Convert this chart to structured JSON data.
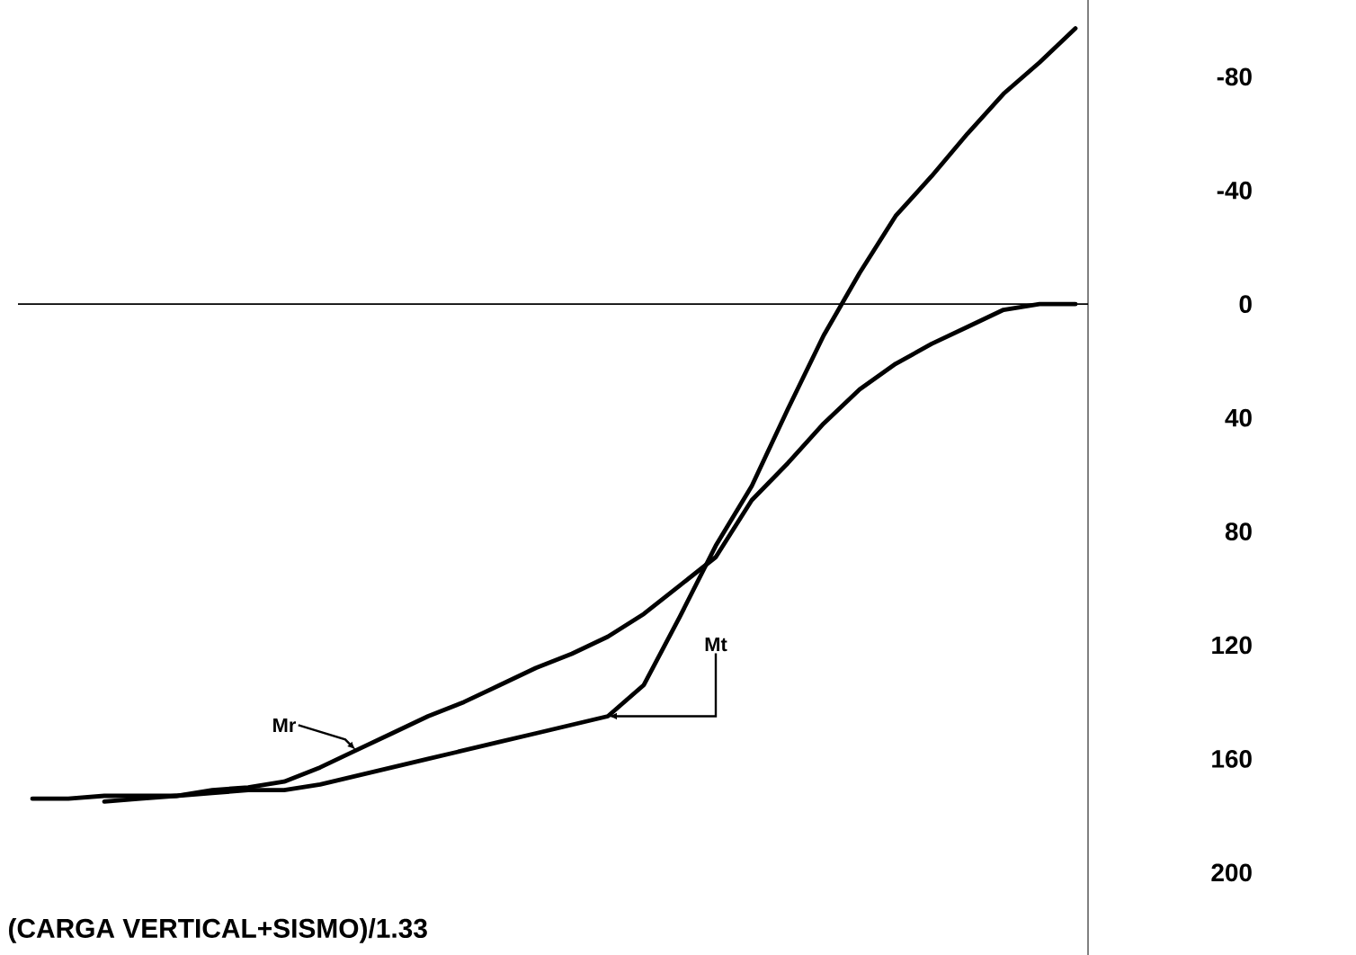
{
  "chart_data": {
    "type": "line",
    "categories": [
      null,
      null,
      null,
      null,
      null,
      null,
      null,
      null,
      null,
      null,
      null,
      null,
      null,
      null,
      null,
      null,
      null,
      null,
      null,
      null,
      null,
      null,
      null,
      null,
      null,
      null,
      null,
      null,
      null,
      null
    ],
    "series": [
      {
        "name": "Mr",
        "color": "#000000",
        "values": [
          null,
          null,
          175,
          174,
          173,
          171,
          170,
          168,
          163,
          157,
          151,
          145,
          140,
          134,
          128,
          123,
          117,
          109,
          99,
          89,
          69,
          56,
          42,
          30,
          21,
          14,
          8,
          2,
          0,
          0
        ]
      },
      {
        "name": "Mt",
        "color": "#000000",
        "values": [
          174,
          174,
          173,
          173,
          173,
          172,
          171,
          171,
          169,
          166,
          163,
          160,
          157,
          154,
          151,
          148,
          145,
          134,
          110,
          85,
          64,
          37,
          11,
          -11,
          -31,
          -45,
          -60,
          -74,
          -85,
          -97
        ]
      }
    ],
    "ylim": [
      229,
      -107
    ],
    "yticks": [
      -80,
      -40,
      0,
      40,
      80,
      120,
      160,
      200
    ],
    "ref_lines": [
      {
        "axis": "y",
        "value": 0,
        "color": "#000000"
      }
    ],
    "annotations": [
      "(CARGA VERTICAL+SISMO)/1.33"
    ]
  }
}
